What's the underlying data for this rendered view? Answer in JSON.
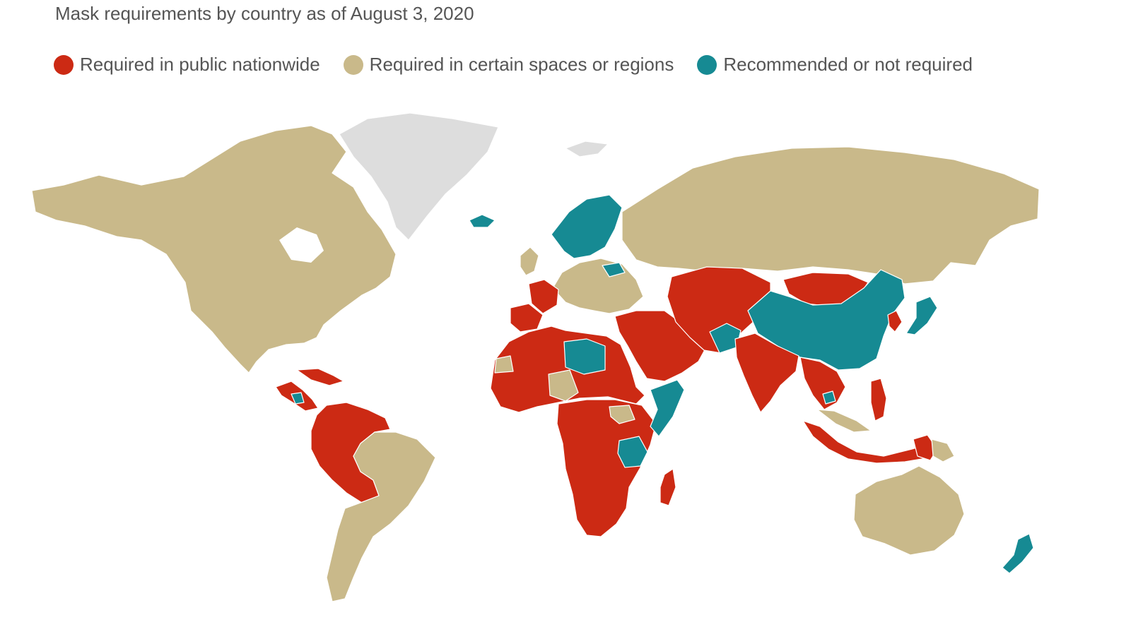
{
  "title": "Mask requirements by country as of August 3, 2020",
  "legend": [
    {
      "label": "Required in public nationwide",
      "color": "#cc2a14"
    },
    {
      "label": "Required in certain spaces or regions",
      "color": "#c9b98a"
    },
    {
      "label": "Recommended or not required",
      "color": "#168a93"
    }
  ],
  "colors": {
    "no_data": "#dddddd",
    "border": "#ffffff",
    "background": "#ffffff"
  },
  "regions": {
    "required_nationwide": [
      "Spain",
      "France",
      "Peru",
      "Bolivia",
      "Colombia",
      "Venezuela",
      "Ecuador",
      "Central America",
      "Caribbean",
      "Morocco",
      "Algeria",
      "West Africa",
      "Egypt",
      "Sudan",
      "Ethiopia",
      "Kenya",
      "Central Africa",
      "Southern Africa",
      "Madagascar",
      "Turkey",
      "Iran",
      "Saudi Arabia",
      "Central Asia",
      "Mongolia",
      "India",
      "Southeast Asia",
      "Indonesia",
      "Philippines",
      "Papua New Guinea",
      "South Korea"
    ],
    "required_certain_spaces": [
      "Canada",
      "United States",
      "Mexico",
      "Brazil",
      "Argentina",
      "Chile",
      "Russia",
      "Central Europe",
      "Western Sahara",
      "Chad",
      "South Sudan",
      "Australia",
      "Papua region"
    ],
    "recommended_or_not_required": [
      "Iceland",
      "Norway",
      "Sweden",
      "Finland",
      "Belarus",
      "Libya",
      "Somalia",
      "Tanzania",
      "Afghanistan",
      "China",
      "Japan",
      "New Zealand",
      "Nicaragua",
      "Cambodia"
    ],
    "no_data": [
      "Greenland",
      "Svalbard"
    ]
  }
}
